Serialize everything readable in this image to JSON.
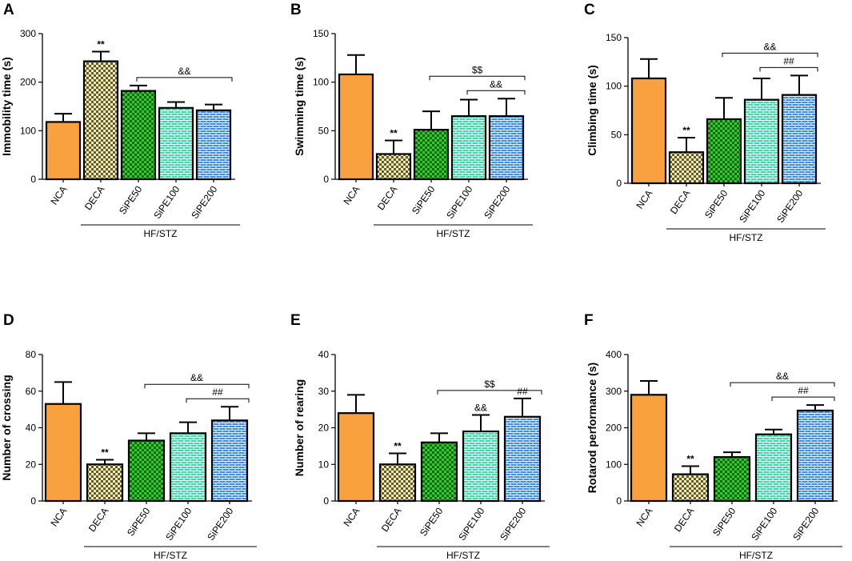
{
  "colors": {
    "NCA": "#f9a03f",
    "DECA": "#f3e7a4",
    "SiPE50": "#2fc02a",
    "SiPE100": "#3fd3a6",
    "SiPE200": "#3f88e0"
  },
  "chart_data": [
    {
      "type": "bar",
      "panel": "A",
      "ylabel": "Immobility time (s)",
      "ylim": [
        0,
        300
      ],
      "yticks": [
        0,
        100,
        200,
        300
      ],
      "categories": [
        "NCA",
        "DECA",
        "SiPE50",
        "SiPE100",
        "SiPE200"
      ],
      "values": [
        118,
        243,
        182,
        147,
        142
      ],
      "errors": [
        17,
        20,
        11,
        12,
        12
      ],
      "bar_annotations": [
        "",
        "**",
        "",
        "",
        ""
      ],
      "brackets": [
        {
          "label": "&&",
          "from": 2,
          "to": 4
        }
      ],
      "group_label": "HF/STZ"
    },
    {
      "type": "bar",
      "panel": "B",
      "ylabel": "Swimming time (s)",
      "ylim": [
        0,
        150
      ],
      "yticks": [
        0,
        50,
        100,
        150
      ],
      "categories": [
        "NCA",
        "DECA",
        "SiPE50",
        "SiPE100",
        "SiPE200"
      ],
      "values": [
        108,
        26,
        51,
        65,
        65
      ],
      "errors": [
        20,
        14,
        19,
        17,
        18
      ],
      "bar_annotations": [
        "",
        "**",
        "",
        "",
        ""
      ],
      "brackets": [
        {
          "label": "$$",
          "from": 2,
          "to": 4
        },
        {
          "label": "&&",
          "from": 3,
          "to": 4
        }
      ],
      "group_label": "HF/STZ"
    },
    {
      "type": "bar",
      "panel": "C",
      "ylabel": "Climbing time (s)",
      "ylim": [
        0,
        150
      ],
      "yticks": [
        0,
        50,
        100,
        150
      ],
      "categories": [
        "NCA",
        "DECA",
        "SiPE50",
        "SiPE100",
        "SiPE200"
      ],
      "values": [
        108,
        32,
        66,
        86,
        91
      ],
      "errors": [
        20,
        15,
        22,
        22,
        20
      ],
      "bar_annotations": [
        "",
        "**",
        "",
        "",
        ""
      ],
      "brackets": [
        {
          "label": "&&",
          "from": 2,
          "to": 4
        },
        {
          "label": "##",
          "from": 3,
          "to": 4
        }
      ],
      "group_label": "HF/STZ"
    },
    {
      "type": "bar",
      "panel": "D",
      "ylabel": "Number of crossing",
      "ylim": [
        0,
        80
      ],
      "yticks": [
        0,
        20,
        40,
        60,
        80
      ],
      "categories": [
        "NCA",
        "DECA",
        "SiPE50",
        "SiPE100",
        "SiPE200"
      ],
      "values": [
        53,
        20,
        33,
        37,
        44
      ],
      "errors": [
        12,
        2.5,
        4,
        6,
        7.5
      ],
      "bar_annotations": [
        "",
        "**",
        "",
        "",
        ""
      ],
      "brackets": [
        {
          "label": "&&",
          "from": 2,
          "to": 4
        },
        {
          "label": "##",
          "from": 3,
          "to": 4
        }
      ],
      "group_label": "HF/STZ"
    },
    {
      "type": "bar",
      "panel": "E",
      "ylabel": "Number of rearing",
      "ylim": [
        0,
        40
      ],
      "yticks": [
        0,
        10,
        20,
        30,
        40
      ],
      "categories": [
        "NCA",
        "DECA",
        "SiPE50",
        "SiPE100",
        "SiPE200"
      ],
      "values": [
        24,
        10,
        16,
        19,
        23
      ],
      "errors": [
        5,
        3,
        2.5,
        4.5,
        5
      ],
      "bar_annotations": [
        "",
        "**",
        "",
        "&&",
        "##"
      ],
      "brackets": [
        {
          "label": "$$",
          "from": 2,
          "to": 4
        }
      ],
      "group_label": "HF/STZ"
    },
    {
      "type": "bar",
      "panel": "F",
      "ylabel": "Rotarod performance (s)",
      "ylim": [
        0,
        400
      ],
      "yticks": [
        0,
        100,
        200,
        300,
        400
      ],
      "categories": [
        "NCA",
        "DECA",
        "SiPE50",
        "SiPE100",
        "SiPE200"
      ],
      "values": [
        290,
        73,
        120,
        182,
        247
      ],
      "errors": [
        38,
        22,
        13,
        13,
        15
      ],
      "bar_annotations": [
        "",
        "**",
        "",
        "",
        ""
      ],
      "brackets": [
        {
          "label": "&&",
          "from": 2,
          "to": 4
        },
        {
          "label": "##",
          "from": 3,
          "to": 4
        }
      ],
      "group_label": "HF/STZ"
    }
  ]
}
